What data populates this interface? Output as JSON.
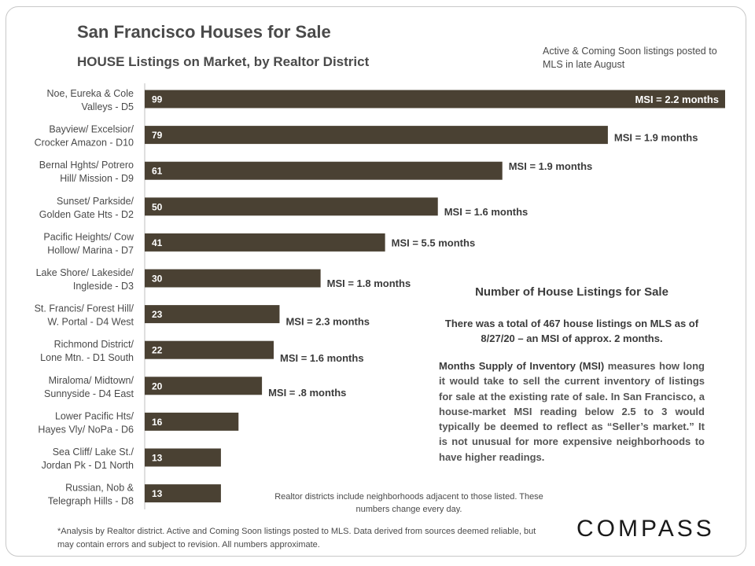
{
  "title": "San Francisco Houses for Sale",
  "subtitle": "HOUSE Listings on Market, by Realtor District",
  "note_top": "Active & Coming Soon listings posted to MLS in late August",
  "chart_data": {
    "type": "bar",
    "orientation": "horizontal",
    "title": "HOUSE Listings on Market, by Realtor District",
    "xlim": [
      0,
      99
    ],
    "bar_color": "#4a4133",
    "categories": [
      [
        "Noe, Eureka & Cole",
        "Valleys - D5"
      ],
      [
        "Bayview/ Excelsior/",
        "Crocker Amazon - D10"
      ],
      [
        "Bernal Hghts/ Potrero",
        "Hill/ Mission - D9"
      ],
      [
        "Sunset/ Parkside/",
        "Golden Gate Hts - D2"
      ],
      [
        "Pacific Heights/ Cow",
        "Hollow/ Marina - D7"
      ],
      [
        "Lake Shore/ Lakeside/",
        "Ingleside - D3"
      ],
      [
        "St. Francis/ Forest Hill/",
        "W. Portal - D4 West"
      ],
      [
        "Richmond District/",
        "Lone Mtn. - D1 South"
      ],
      [
        "Miraloma/ Midtown/",
        "Sunnyside - D4 East"
      ],
      [
        "Lower Pacific Hts/",
        "Hayes Vly/ NoPa - D6"
      ],
      [
        "Sea Cliff/ Lake St./",
        "Jordan Pk - D1 North"
      ],
      [
        "Russian, Nob &",
        "Telegraph Hills - D8"
      ]
    ],
    "values": [
      99,
      79,
      61,
      50,
      41,
      30,
      23,
      22,
      20,
      16,
      13,
      13
    ],
    "msi_labels": [
      "MSI = 2.2 months",
      "MSI = 1.9 months",
      "MSI = 1.9 months",
      "MSI = 1.6 months",
      "MSI = 5.5 months",
      "MSI = 1.8 months",
      "MSI = 2.3 months",
      "MSI = 1.6 months",
      "MSI = .8 months",
      "",
      "",
      ""
    ]
  },
  "info": {
    "title": "Number of House Listings for Sale",
    "summary": "There was a total of 467 house listings on MLS as of 8/27/20 – an MSI of approx. 2 months.",
    "msi_lead": "Months Supply of Inventory (MSI)",
    "msi_body": " measures how long it would take to sell the current inventory of listings for sale at the existing rate of sale. In San Francisco, a house-market MSI reading below 2.5 to 3 would typically be deemed to reflect as “Seller’s market.” It is not unusual for more expensive neighborhoods to have higher readings."
  },
  "note_bottom": "Realtor districts include neighborhoods adjacent to those listed. These numbers change every day.",
  "footnote": "*Analysis by Realtor district. Active and Coming Soon listings posted to MLS. Data derived from sources deemed reliable, but may contain errors and subject to revision. All numbers approximate.",
  "logo": "COMPASS"
}
